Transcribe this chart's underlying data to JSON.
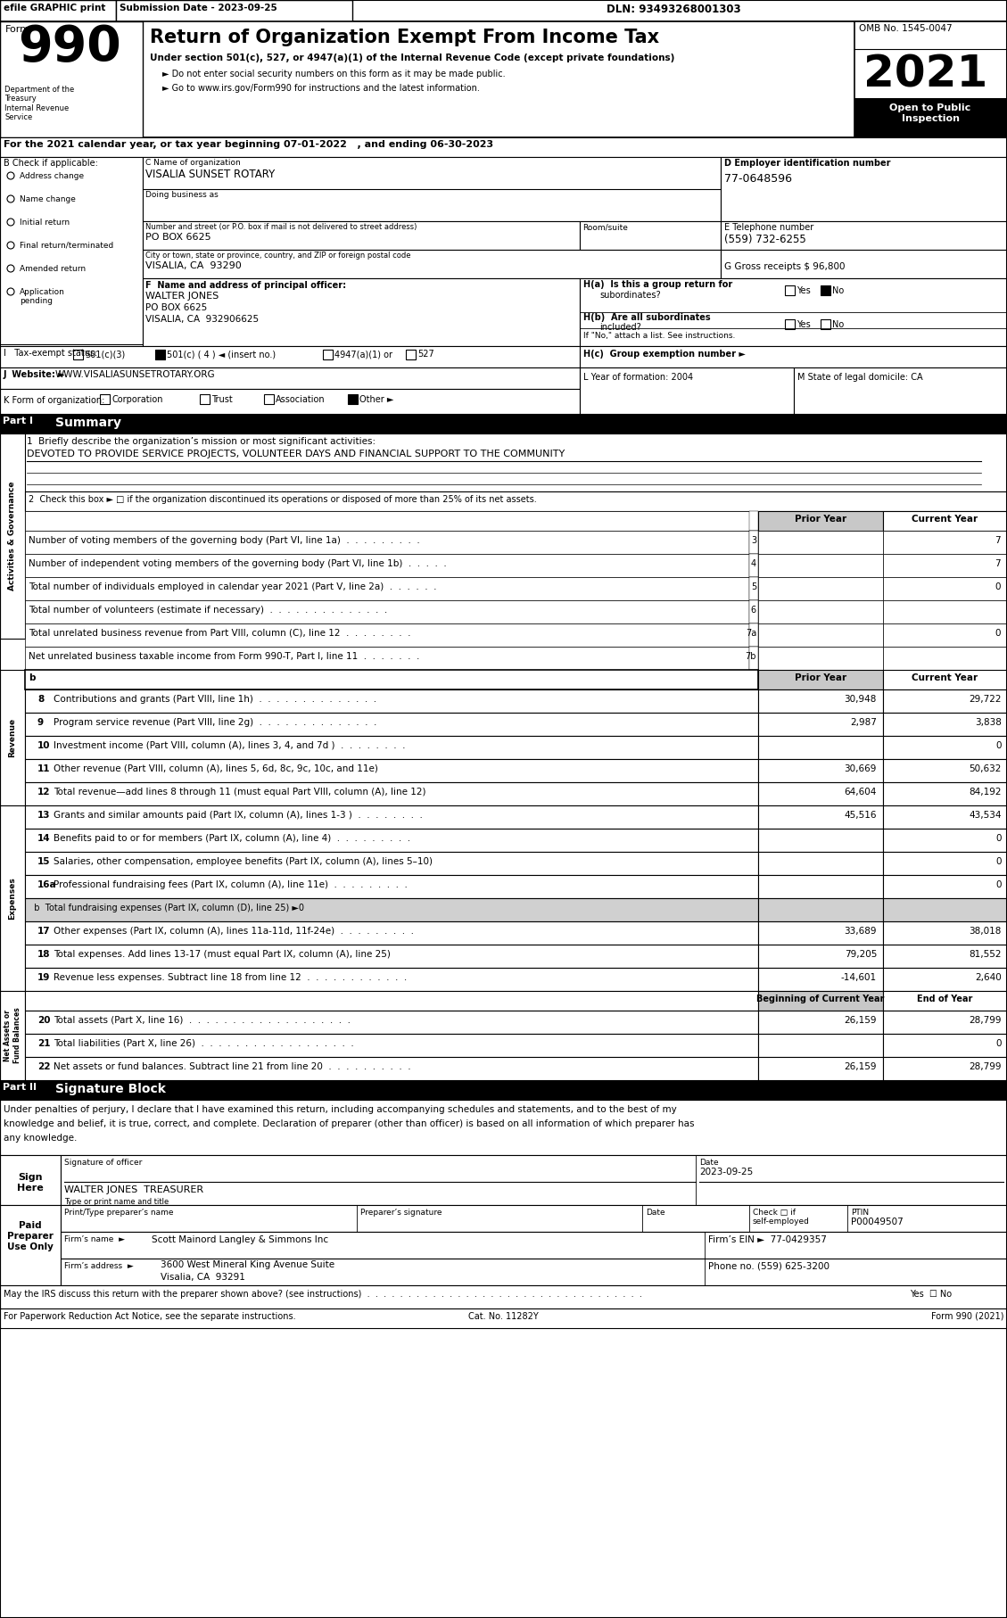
{
  "title_main": "Return of Organization Exempt From Income Tax",
  "subtitle1": "Under section 501(c), 527, or 4947(a)(1) of the Internal Revenue Code (except private foundations)",
  "bullet1": "► Do not enter social security numbers on this form as it may be made public.",
  "bullet2": "► Go to www.irs.gov/Form990 for instructions and the latest information.",
  "omb": "OMB No. 1545-0047",
  "open_public": "Open to Public\nInspection",
  "efile": "efile GRAPHIC print",
  "submission": "Submission Date - 2023-09-25",
  "dln": "DLN: 93493268001303",
  "dept": "Department of the\nTreasury\nInternal Revenue\nService",
  "line_a": "For the 2021 calendar year, or tax year beginning 07-01-2022   , and ending 06-30-2023",
  "org_name_label": "C Name of organization",
  "org_name": "VISALIA SUNSET ROTARY",
  "dba_label": "Doing business as",
  "address_label": "Number and street (or P.O. box if mail is not delivered to street address)",
  "address": "PO BOX 6625",
  "room_label": "Room/suite",
  "city_label": "City or town, state or province, country, and ZIP or foreign postal code",
  "city": "VISALIA, CA  93290",
  "ein_label": "D Employer identification number",
  "ein": "77-0648596",
  "phone_label": "E Telephone number",
  "phone": "(559) 732-6255",
  "gross_label": "G Gross receipts $",
  "gross": "96,800",
  "principal_label": "F  Name and address of principal officer:",
  "principal_name": "WALTER JONES",
  "principal_addr1": "PO BOX 6625",
  "principal_addr2": "VISALIA, CA  932906625",
  "ha_label": "H(a)  Is this a group return for",
  "ha_sub": "subordinates?",
  "hb_label": "H(b)  Are all subordinates",
  "hb_sub": "included?",
  "hb_note": "If \"No,\" attach a list. See instructions.",
  "hc_label": "H(c)  Group exemption number ►",
  "tax_label": "I   Tax-exempt status:",
  "tax_501c3": "501(c)(3)",
  "tax_501c4": "501(c) ( 4 ) ◄ (insert no.)",
  "tax_4947": "4947(a)(1) or",
  "tax_527": "527",
  "website_label": "J  Website: ►",
  "website": "WWW.VISALIASUNSETROTARY.ORG",
  "k_label": "K Form of organization:",
  "k_corp": "Corporation",
  "k_trust": "Trust",
  "k_assoc": "Association",
  "k_other": "Other ►",
  "l_label": "L Year of formation: 2004",
  "m_label": "M State of legal domicile: CA",
  "b_label": "B Check if applicable:",
  "b_items": [
    "Address change",
    "Name change",
    "Initial return",
    "Final return/terminated",
    "Amended return",
    "Application\npending"
  ],
  "part1_label": "Part I",
  "part1_title": "Summary",
  "mission_label": "1  Briefly describe the organization’s mission or most significant activities:",
  "mission_text": "DEVOTED TO PROVIDE SERVICE PROJECTS, VOLUNTEER DAYS AND FINANCIAL SUPPORT TO THE COMMUNITY",
  "check2": "2  Check this box ► □ if the organization discontinued its operations or disposed of more than 25% of its net assets.",
  "lines": [
    {
      "num": "3",
      "label": "Number of voting members of the governing body (Part VI, line 1a)  .  .  .  .  .  .  .  .  .",
      "col": "3",
      "val_current": "7"
    },
    {
      "num": "4",
      "label": "Number of independent voting members of the governing body (Part VI, line 1b)  .  .  .  .  .",
      "col": "4",
      "val_current": "7"
    },
    {
      "num": "5",
      "label": "Total number of individuals employed in calendar year 2021 (Part V, line 2a)  .  .  .  .  .  .",
      "col": "5",
      "val_current": "0"
    },
    {
      "num": "6",
      "label": "Total number of volunteers (estimate if necessary)  .  .  .  .  .  .  .  .  .  .  .  .  .  .",
      "col": "6",
      "val_current": ""
    },
    {
      "num": "7a",
      "label": "Total unrelated business revenue from Part VIII, column (C), line 12  .  .  .  .  .  .  .  .",
      "col": "7a",
      "val_current": "0"
    },
    {
      "num": "7b",
      "label": "Net unrelated business taxable income from Form 990-T, Part I, line 11  .  .  .  .  .  .  .",
      "col": "7b",
      "val_current": ""
    }
  ],
  "col_headers": [
    "Prior Year",
    "Current Year"
  ],
  "revenue_lines": [
    {
      "num": "8",
      "label": "Contributions and grants (Part VIII, line 1h)  .  .  .  .  .  .  .  .  .  .  .  .  .  .",
      "prior": "30,948",
      "current": "29,722"
    },
    {
      "num": "9",
      "label": "Program service revenue (Part VIII, line 2g)  .  .  .  .  .  .  .  .  .  .  .  .  .  .",
      "prior": "2,987",
      "current": "3,838"
    },
    {
      "num": "10",
      "label": "Investment income (Part VIII, column (A), lines 3, 4, and 7d )  .  .  .  .  .  .  .  .",
      "prior": "",
      "current": "0"
    },
    {
      "num": "11",
      "label": "Other revenue (Part VIII, column (A), lines 5, 6d, 8c, 9c, 10c, and 11e)",
      "prior": "30,669",
      "current": "50,632"
    },
    {
      "num": "12",
      "label": "Total revenue—add lines 8 through 11 (must equal Part VIII, column (A), line 12)",
      "prior": "64,604",
      "current": "84,192"
    }
  ],
  "expense_lines": [
    {
      "num": "13",
      "label": "Grants and similar amounts paid (Part IX, column (A), lines 1-3 )  .  .  .  .  .  .  .  .",
      "prior": "45,516",
      "current": "43,534",
      "gray": false
    },
    {
      "num": "14",
      "label": "Benefits paid to or for members (Part IX, column (A), line 4)  .  .  .  .  .  .  .  .  .",
      "prior": "",
      "current": "0",
      "gray": false
    },
    {
      "num": "15",
      "label": "Salaries, other compensation, employee benefits (Part IX, column (A), lines 5–10)",
      "prior": "",
      "current": "0",
      "gray": false
    },
    {
      "num": "16a",
      "label": "Professional fundraising fees (Part IX, column (A), line 11e)  .  .  .  .  .  .  .  .  .",
      "prior": "",
      "current": "0",
      "gray": false
    },
    {
      "num": "b",
      "label": "  b  Total fundraising expenses (Part IX, column (D), line 25) ►0",
      "prior": "",
      "current": "",
      "gray": true
    },
    {
      "num": "17",
      "label": "Other expenses (Part IX, column (A), lines 11a-11d, 11f-24e)  .  .  .  .  .  .  .  .  .",
      "prior": "33,689",
      "current": "38,018",
      "gray": false
    },
    {
      "num": "18",
      "label": "Total expenses. Add lines 13-17 (must equal Part IX, column (A), line 25)",
      "prior": "79,205",
      "current": "81,552",
      "gray": false
    },
    {
      "num": "19",
      "label": "Revenue less expenses. Subtract line 18 from line 12  .  .  .  .  .  .  .  .  .  .  .  .",
      "prior": "-14,601",
      "current": "2,640",
      "gray": false
    }
  ],
  "net_headers": [
    "Beginning of Current Year",
    "End of Year"
  ],
  "net_lines": [
    {
      "num": "20",
      "label": "Total assets (Part X, line 16)  .  .  .  .  .  .  .  .  .  .  .  .  .  .  .  .  .  .  .",
      "prior": "26,159",
      "current": "28,799"
    },
    {
      "num": "21",
      "label": "Total liabilities (Part X, line 26)  .  .  .  .  .  .  .  .  .  .  .  .  .  .  .  .  .  .",
      "prior": "",
      "current": "0"
    },
    {
      "num": "22",
      "label": "Net assets or fund balances. Subtract line 21 from line 20  .  .  .  .  .  .  .  .  .  .",
      "prior": "26,159",
      "current": "28,799"
    }
  ],
  "sig_title": "Part II",
  "sig_label": "Signature Block",
  "sig_text": "Under penalties of perjury, I declare that I have examined this return, including accompanying schedules and statements, and to the best of my knowledge and belief, it is true, correct, and complete. Declaration of preparer (other than officer) is based on all information of which preparer has any knowledge.",
  "sign_label": "Sign\nHere",
  "sig_date": "2023-09-25",
  "sig_officer_label": "Signature of officer",
  "sig_officer_name": "WALTER JONES  TREASURER",
  "sig_type_label": "Type or print name and title",
  "preparer_label": "Paid\nPreparer\nUse Only",
  "prep_name_label": "Print/Type preparer’s name",
  "prep_sig_label": "Preparer’s signature",
  "prep_date_label": "Date",
  "prep_check_label": "Check □ if\nself-employed",
  "prep_ptin_label": "PTIN",
  "prep_ptin": "P00049507",
  "prep_firm_name": "Firm’s name",
  "prep_firm": "Scott Mainord Langley & Simmons Inc",
  "prep_firm_ein_label": "Firm’s EIN ►",
  "prep_firm_ein": "77-0429357",
  "prep_addr_label": "Firm’s address",
  "prep_addr": "3600 West Mineral King Avenue Suite",
  "prep_city": "Visalia, CA  93291",
  "prep_phone_label": "Phone no.",
  "prep_phone": "(559) 625-3200",
  "bottom1": "May the IRS discuss this return with the preparer shown above? (see instructions)  .  .  .  .  .  .  .  .  .  .  .  .  .  .  .  .  .  .  .  .  .  .  .  .  .  .  .  .  .  .  .  .  .  .",
  "bottom1b": "Yes  ☐ No",
  "bottom2": "For Paperwork Reduction Act Notice, see the separate instructions.",
  "bottom3": "Cat. No. 11282Y",
  "bottom4": "Form 990 (2021)"
}
